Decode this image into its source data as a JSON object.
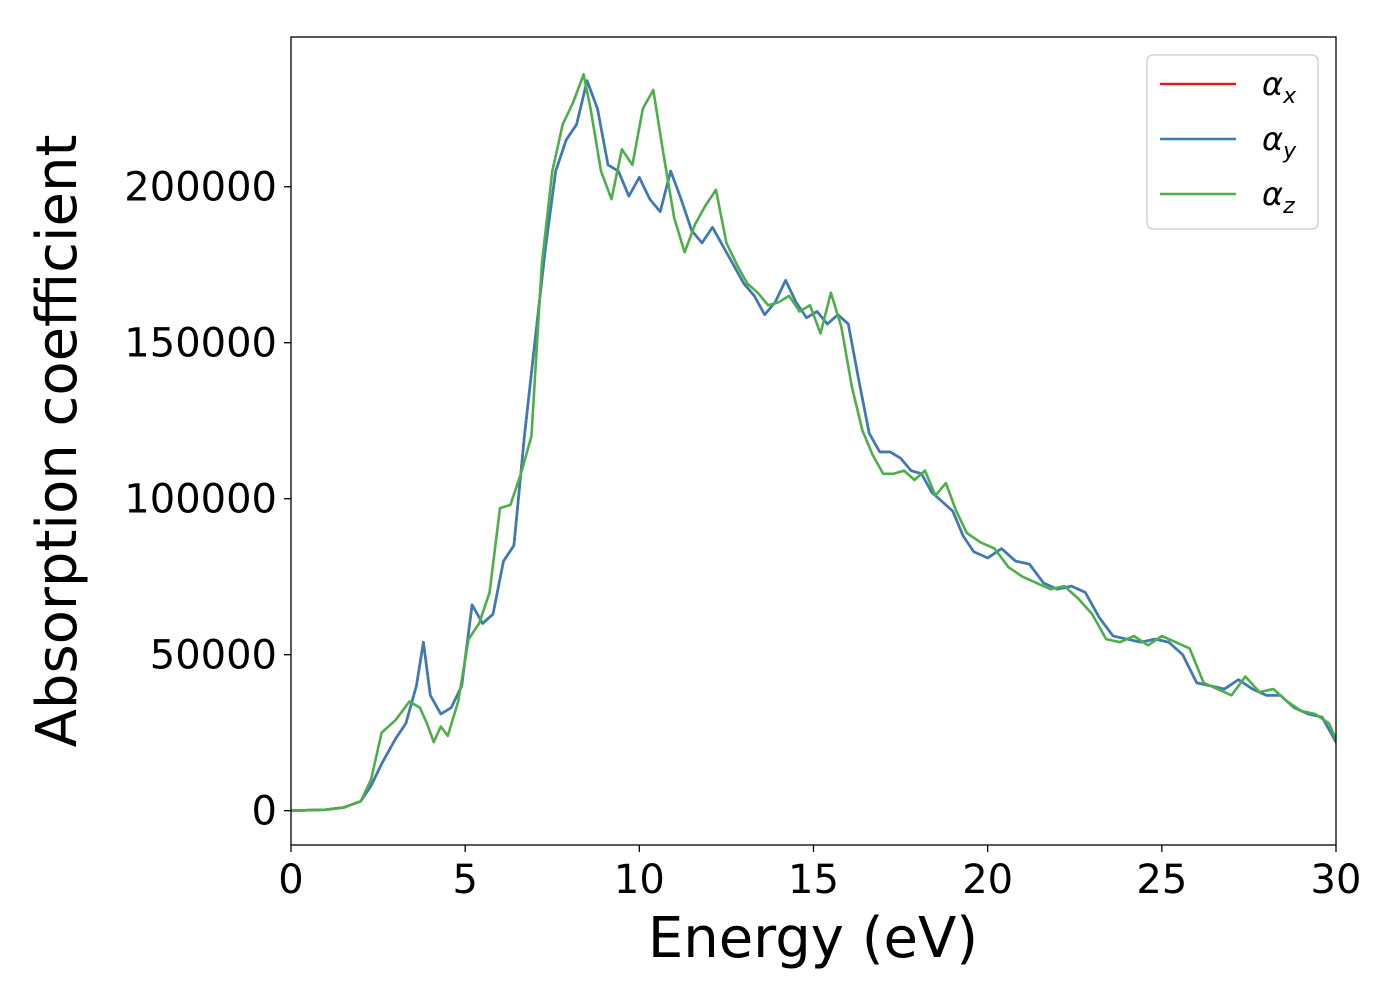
{
  "chart_data": {
    "type": "line",
    "xlabel": "Energy (eV)",
    "ylabel": "Absorption coefficient",
    "xlim": [
      0,
      30
    ],
    "ylim": [
      -11000,
      248000
    ],
    "xticks": [
      "0",
      "5",
      "10",
      "15",
      "20",
      "25",
      "30"
    ],
    "yticks": [
      "0",
      "50000",
      "100000",
      "150000",
      "200000"
    ],
    "grid": false,
    "legend_position": "top-right",
    "series": [
      {
        "name": "α",
        "subscript": "x",
        "color": "#e41a1c",
        "x": [
          0,
          1,
          1.5,
          2,
          2.3,
          2.6,
          3,
          3.3,
          3.6,
          3.8,
          4.0,
          4.3,
          4.6,
          4.9,
          5.2,
          5.5,
          5.8,
          6.1,
          6.4,
          6.7,
          7.0,
          7.3,
          7.6,
          7.9,
          8.2,
          8.5,
          8.8,
          9.1,
          9.4,
          9.7,
          10.0,
          10.3,
          10.6,
          10.9,
          11.2,
          11.5,
          11.8,
          12.1,
          12.4,
          12.7,
          13.0,
          13.3,
          13.6,
          13.9,
          14.2,
          14.5,
          14.8,
          15.1,
          15.4,
          15.7,
          16.0,
          16.3,
          16.6,
          16.9,
          17.2,
          17.5,
          17.8,
          18.1,
          18.4,
          18.7,
          19.0,
          19.3,
          19.6,
          20.0,
          20.4,
          20.8,
          21.2,
          21.6,
          22.0,
          22.4,
          22.8,
          23.2,
          23.6,
          24.0,
          24.4,
          24.8,
          25.2,
          25.6,
          26.0,
          26.4,
          26.8,
          27.2,
          27.6,
          28.0,
          28.4,
          28.8,
          29.2,
          29.6,
          30.0
        ],
        "values": [
          0,
          300,
          1000,
          3000,
          8000,
          15000,
          23000,
          28000,
          40000,
          54000,
          37000,
          31000,
          33000,
          40000,
          66000,
          60000,
          63000,
          80000,
          85000,
          120000,
          150000,
          180000,
          205000,
          215000,
          220000,
          234000,
          225000,
          207000,
          205000,
          197000,
          203000,
          196000,
          192000,
          205000,
          196000,
          186000,
          182000,
          187000,
          181000,
          175000,
          169000,
          165000,
          159000,
          163000,
          170000,
          163000,
          158000,
          160000,
          156000,
          159000,
          156000,
          138000,
          121000,
          115000,
          115000,
          113000,
          109000,
          108000,
          102000,
          99000,
          96000,
          88000,
          83000,
          81000,
          84000,
          80000,
          79000,
          73000,
          71000,
          72000,
          70000,
          62000,
          56000,
          55000,
          54000,
          55000,
          54000,
          50000,
          41000,
          40000,
          39000,
          42000,
          39000,
          37000,
          37000,
          33000,
          31000,
          30000,
          22000
        ]
      },
      {
        "name": "α",
        "subscript": "y",
        "color": "#377eb8",
        "x": [
          0,
          1,
          1.5,
          2,
          2.3,
          2.6,
          3,
          3.3,
          3.6,
          3.8,
          4.0,
          4.3,
          4.6,
          4.9,
          5.2,
          5.5,
          5.8,
          6.1,
          6.4,
          6.7,
          7.0,
          7.3,
          7.6,
          7.9,
          8.2,
          8.5,
          8.8,
          9.1,
          9.4,
          9.7,
          10.0,
          10.3,
          10.6,
          10.9,
          11.2,
          11.5,
          11.8,
          12.1,
          12.4,
          12.7,
          13.0,
          13.3,
          13.6,
          13.9,
          14.2,
          14.5,
          14.8,
          15.1,
          15.4,
          15.7,
          16.0,
          16.3,
          16.6,
          16.9,
          17.2,
          17.5,
          17.8,
          18.1,
          18.4,
          18.7,
          19.0,
          19.3,
          19.6,
          20.0,
          20.4,
          20.8,
          21.2,
          21.6,
          22.0,
          22.4,
          22.8,
          23.2,
          23.6,
          24.0,
          24.4,
          24.8,
          25.2,
          25.6,
          26.0,
          26.4,
          26.8,
          27.2,
          27.6,
          28.0,
          28.4,
          28.8,
          29.2,
          29.6,
          30.0
        ],
        "values": [
          0,
          300,
          1000,
          3000,
          8000,
          15000,
          23000,
          28000,
          40000,
          54000,
          37000,
          31000,
          33000,
          40000,
          66000,
          60000,
          63000,
          80000,
          85000,
          120000,
          150000,
          180000,
          205000,
          215000,
          220000,
          234000,
          225000,
          207000,
          205000,
          197000,
          203000,
          196000,
          192000,
          205000,
          196000,
          186000,
          182000,
          187000,
          181000,
          175000,
          169000,
          165000,
          159000,
          163000,
          170000,
          163000,
          158000,
          160000,
          156000,
          159000,
          156000,
          138000,
          121000,
          115000,
          115000,
          113000,
          109000,
          108000,
          102000,
          99000,
          96000,
          88000,
          83000,
          81000,
          84000,
          80000,
          79000,
          73000,
          71000,
          72000,
          70000,
          62000,
          56000,
          55000,
          54000,
          55000,
          54000,
          50000,
          41000,
          40000,
          39000,
          42000,
          39000,
          37000,
          37000,
          33000,
          31000,
          30000,
          22000
        ]
      },
      {
        "name": "α",
        "subscript": "z",
        "color": "#4daf4a",
        "x": [
          0,
          1,
          1.5,
          2,
          2.3,
          2.6,
          3,
          3.4,
          3.7,
          3.9,
          4.1,
          4.3,
          4.5,
          4.8,
          5.1,
          5.4,
          5.7,
          6.0,
          6.3,
          6.6,
          6.9,
          7.2,
          7.5,
          7.8,
          8.1,
          8.4,
          8.6,
          8.9,
          9.2,
          9.5,
          9.8,
          10.1,
          10.4,
          10.7,
          11.0,
          11.3,
          11.6,
          11.9,
          12.2,
          12.5,
          12.8,
          13.1,
          13.4,
          13.7,
          14.0,
          14.3,
          14.6,
          14.9,
          15.2,
          15.5,
          15.8,
          16.1,
          16.4,
          16.7,
          17.0,
          17.3,
          17.6,
          17.9,
          18.2,
          18.5,
          18.8,
          19.1,
          19.4,
          19.8,
          20.2,
          20.6,
          21.0,
          21.4,
          21.8,
          22.2,
          22.6,
          23.0,
          23.4,
          23.8,
          24.2,
          24.6,
          25.0,
          25.4,
          25.8,
          26.2,
          26.6,
          27.0,
          27.4,
          27.8,
          28.2,
          28.6,
          29.0,
          29.4,
          29.8,
          30.0
        ],
        "values": [
          0,
          300,
          1000,
          3000,
          10000,
          25000,
          29000,
          35000,
          33000,
          28000,
          22000,
          27000,
          24000,
          35000,
          55000,
          60000,
          70000,
          97000,
          98000,
          108000,
          120000,
          175000,
          205000,
          220000,
          227000,
          236000,
          225000,
          205000,
          196000,
          212000,
          207000,
          225000,
          231000,
          210000,
          190000,
          179000,
          188000,
          194000,
          199000,
          182000,
          175000,
          169000,
          166000,
          162000,
          163000,
          165000,
          160000,
          162000,
          153000,
          166000,
          155000,
          136000,
          122000,
          114000,
          108000,
          108000,
          109000,
          106000,
          109000,
          101000,
          105000,
          96000,
          89000,
          86000,
          84000,
          78000,
          75000,
          73000,
          71000,
          72000,
          68000,
          63000,
          55000,
          54000,
          56000,
          53000,
          56000,
          54000,
          52000,
          41000,
          39000,
          37000,
          43000,
          38000,
          39000,
          35000,
          32000,
          31000,
          28000,
          23000
        ]
      }
    ]
  }
}
